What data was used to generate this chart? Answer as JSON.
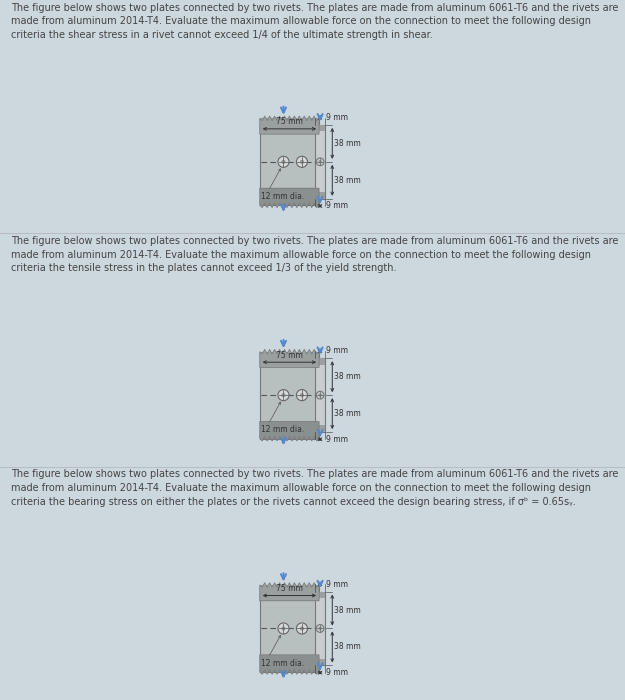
{
  "bg_color": "#ccd7de",
  "text_color": "#444444",
  "blue_arrow": "#5588cc",
  "texts": [
    "The figure below shows two plates connected by two rivets. The plates are made from aluminum 6061-T6 and the rivets are\nmade from aluminum 2014-T4. Evaluate the maximum allowable force on the connection to meet the following design\ncriteria the shear stress in a rivet cannot exceed 1/4 of the ultimate strength in shear.",
    "The figure below shows two plates connected by two rivets. The plates are made from aluminum 6061-T6 and the rivets are\nmade from aluminum 2014-T4. Evaluate the maximum allowable force on the connection to meet the following design\ncriteria the tensile stress in the plates cannot exceed 1/3 of the yield strength.",
    "The figure below shows two plates connected by two rivets. The plates are made from aluminum 6061-T6 and the rivets are\nmade from aluminum 2014-T4. Evaluate the maximum allowable force on the connection to meet the following design\ncriteria the bearing stress on either the plates or the rivets cannot exceed the design bearing stress, if σᵇ = 0.65sᵧ."
  ]
}
